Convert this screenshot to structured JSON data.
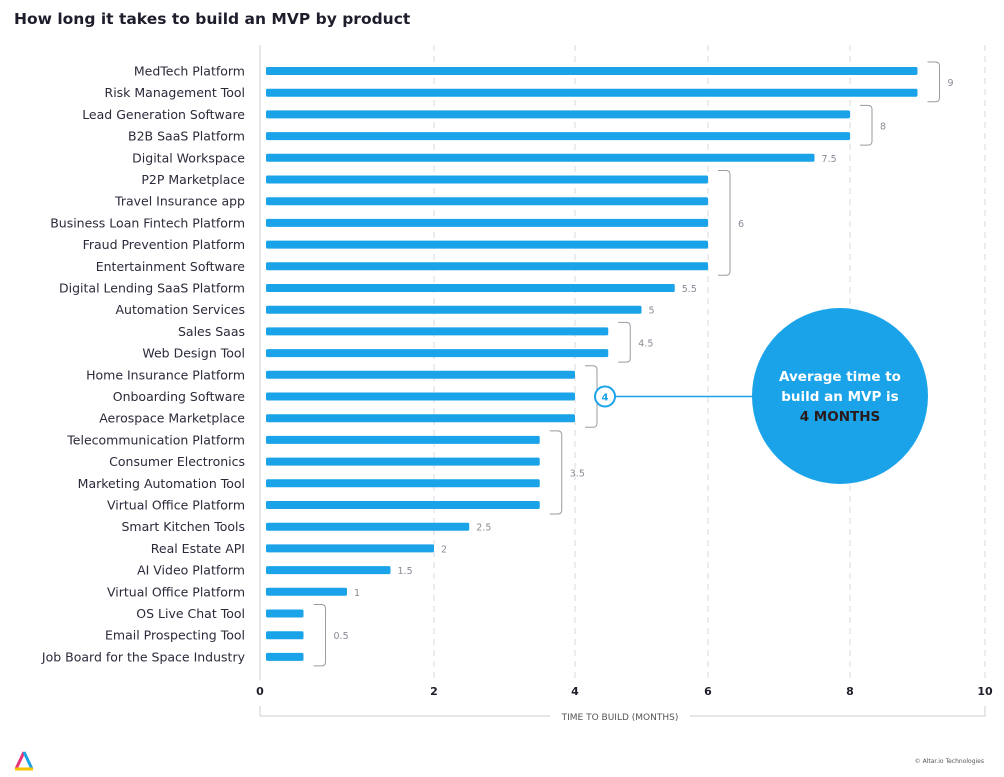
{
  "chart_data": {
    "type": "bar",
    "orientation": "horizontal",
    "title": "How long it takes to build an MVP by product",
    "xlabel": "TIME TO BUILD (MONTHS)",
    "xlim": [
      0,
      10
    ],
    "xticks": [
      "0",
      "2",
      "4",
      "6",
      "8",
      "10"
    ],
    "grid": "vertical dashed",
    "bar_color": "#1aa3e8",
    "categories": [
      "MedTech Platform",
      "Risk Management Tool",
      "Lead Generation Software",
      "B2B SaaS Platform",
      "Digital Workspace",
      "P2P Marketplace",
      "Travel Insurance app",
      "Business Loan Fintech Platform",
      "Fraud Prevention Platform",
      "Entertainment Software",
      "Digital Lending SaaS Platform",
      "Automation Services",
      "Sales Saas",
      "Web Design Tool",
      "Home Insurance Platform",
      "Onboarding Software",
      "Aerospace Marketplace",
      "Telecommunication Platform",
      "Consumer Electronics",
      "Marketing Automation Tool",
      "Virtual Office Platform",
      "Smart Kitchen Tools",
      "Real Estate API",
      "AI Video Platform",
      "Virtual Office Platform",
      "OS Live Chat Tool",
      "Email Prospecting Tool",
      "Job Board for the Space Industry"
    ],
    "values": [
      9,
      9,
      8,
      8,
      7.5,
      6,
      6,
      6,
      6,
      6,
      5.5,
      5,
      4.5,
      4.5,
      4,
      4,
      4,
      3.5,
      3.5,
      3.5,
      3.5,
      2.5,
      2,
      1.5,
      1,
      0.5,
      0.5,
      0.5
    ],
    "group_labels": [
      {
        "from": 0,
        "to": 1,
        "label": "9"
      },
      {
        "from": 2,
        "to": 3,
        "label": "8"
      },
      {
        "from": 4,
        "to": 4,
        "label": "7.5"
      },
      {
        "from": 5,
        "to": 9,
        "label": "6"
      },
      {
        "from": 10,
        "to": 10,
        "label": "5.5"
      },
      {
        "from": 11,
        "to": 11,
        "label": "5"
      },
      {
        "from": 12,
        "to": 13,
        "label": "4.5"
      },
      {
        "from": 14,
        "to": 16,
        "label": "4",
        "highlight": true
      },
      {
        "from": 17,
        "to": 20,
        "label": "3.5"
      },
      {
        "from": 21,
        "to": 21,
        "label": "2.5"
      },
      {
        "from": 22,
        "to": 22,
        "label": "2"
      },
      {
        "from": 23,
        "to": 23,
        "label": "1.5"
      },
      {
        "from": 24,
        "to": 24,
        "label": "1"
      },
      {
        "from": 25,
        "to": 27,
        "label": "0.5"
      }
    ],
    "annotation": {
      "line1": "Average time to",
      "line2": "build an MVP is",
      "line3": "4 MONTHS",
      "color": "#1aa3e8"
    }
  },
  "footer": {
    "copyright": "© Altar.io Technologies",
    "logo_text": "Altar.io"
  }
}
